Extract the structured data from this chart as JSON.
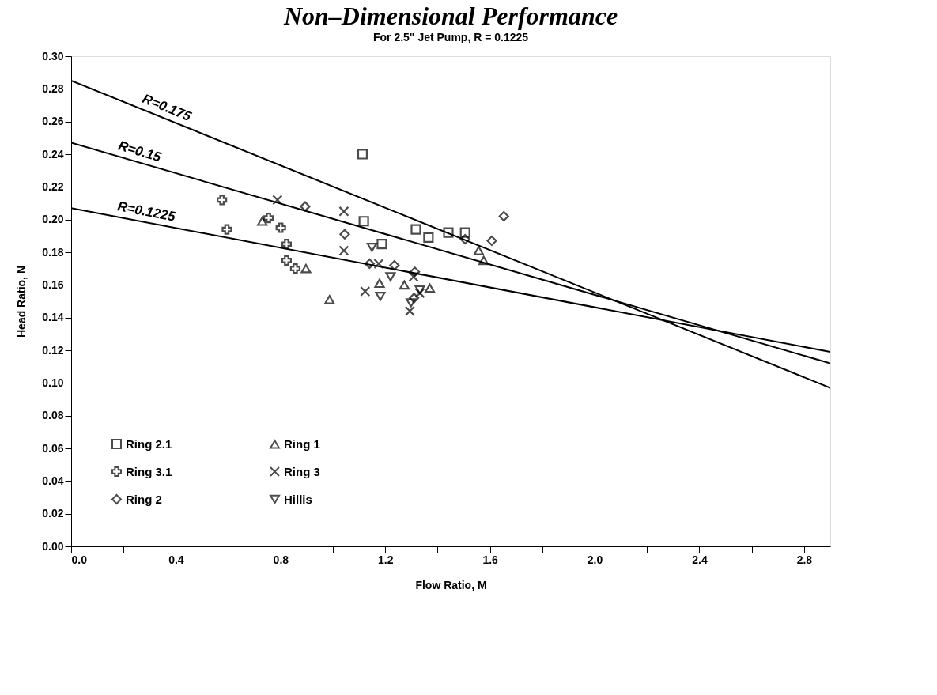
{
  "chart_data": {
    "type": "scatter",
    "title": "Non–Dimensional Performance",
    "subtitle": "For 2.5\" Jet Pump, R = 0.1225",
    "xlabel": "Flow Ratio, M",
    "ylabel": "Head Ratio, N",
    "xlim": [
      0,
      2.9
    ],
    "ylim": [
      0,
      0.3
    ],
    "xticks": [
      {
        "value": 0,
        "label": "0.0"
      },
      {
        "value": 0.2,
        "label": null
      },
      0.4,
      {
        "value": 0.6,
        "label": null
      },
      0.8,
      {
        "value": 1.0,
        "label": null
      },
      1.2,
      {
        "value": 1.4,
        "label": null
      },
      1.6,
      {
        "value": 1.8,
        "label": null
      },
      {
        "value": 2.0,
        "label": "2.0"
      },
      {
        "value": 2.2,
        "label": null
      },
      2.4,
      {
        "value": 2.6,
        "label": null
      },
      2.8
    ],
    "yticks": [
      {
        "value": 0,
        "label": "0.00"
      },
      0.02,
      0.04,
      0.06,
      0.08,
      {
        "value": 0.1,
        "label": "0.10"
      },
      0.12,
      0.14,
      0.16,
      0.18,
      {
        "value": 0.2,
        "label": "0.20"
      },
      0.22,
      0.24,
      0.26,
      0.28,
      {
        "value": 0.3,
        "label": "0.30"
      }
    ],
    "grid": false,
    "legend": "bottom left",
    "series": [
      {
        "name": "Ring 2.1",
        "marker": "square",
        "color": "#000000",
        "x": [
          1.113,
          1.118,
          1.187,
          1.317,
          1.365,
          1.441,
          1.505
        ],
        "values": [
          0.24,
          0.199,
          0.185,
          0.194,
          0.189,
          0.192,
          0.192
        ]
      },
      {
        "name": "Ring 3.1",
        "marker": "plus",
        "color": "#000000",
        "x": [
          0.576,
          0.595,
          0.754,
          0.801,
          0.823,
          0.823,
          0.856
        ],
        "values": [
          0.212,
          0.194,
          0.201,
          0.195,
          0.185,
          0.175,
          0.17
        ]
      },
      {
        "name": "Ring 2",
        "marker": "diamond",
        "color": "#000000",
        "x": [
          0.894,
          1.045,
          1.14,
          1.235,
          1.313,
          1.31,
          1.505,
          1.607,
          1.653
        ],
        "values": [
          0.208,
          0.191,
          0.173,
          0.172,
          0.168,
          0.152,
          0.188,
          0.187,
          0.202
        ]
      },
      {
        "name": "Ring 1",
        "marker": "triangle",
        "color": "#000000",
        "x": [
          0.73,
          0.897,
          0.987,
          1.178,
          1.273,
          1.37,
          1.557,
          1.576
        ],
        "values": [
          0.199,
          0.17,
          0.151,
          0.161,
          0.16,
          0.158,
          0.181,
          0.175
        ]
      },
      {
        "name": "Ring 3",
        "marker": "cross",
        "color": "#000000",
        "x": [
          0.788,
          1.042,
          1.042,
          1.175,
          1.123,
          1.308,
          1.332,
          1.294
        ],
        "values": [
          0.212,
          0.205,
          0.181,
          0.173,
          0.156,
          0.165,
          0.155,
          0.144
        ]
      },
      {
        "name": "Hillis",
        "marker": "triangle-down",
        "color": "#000000",
        "x": [
          1.149,
          1.181,
          1.22,
          1.298,
          1.332
        ],
        "values": [
          0.183,
          0.153,
          0.165,
          0.149,
          0.157
        ]
      },
      {
        "type": "line",
        "color": "#000000",
        "x": [
          0,
          2.9
        ],
        "values": [
          0.285,
          0.097
        ]
      },
      {
        "type": "line",
        "color": "#000000",
        "x": [
          0,
          2.9
        ],
        "values": [
          0.247,
          0.112
        ]
      },
      {
        "type": "line",
        "color": "#000000",
        "x": [
          0,
          2.9
        ],
        "values": [
          0.207,
          0.119
        ]
      }
    ],
    "annotations": [
      {
        "text": "R=0.175",
        "x": 0.35,
        "y": 0.2625
      },
      {
        "text": "R=0.15",
        "x": 0.25,
        "y": 0.2354
      },
      {
        "text": "R=0.1225",
        "x": 0.28,
        "y": 0.1985
      }
    ]
  }
}
